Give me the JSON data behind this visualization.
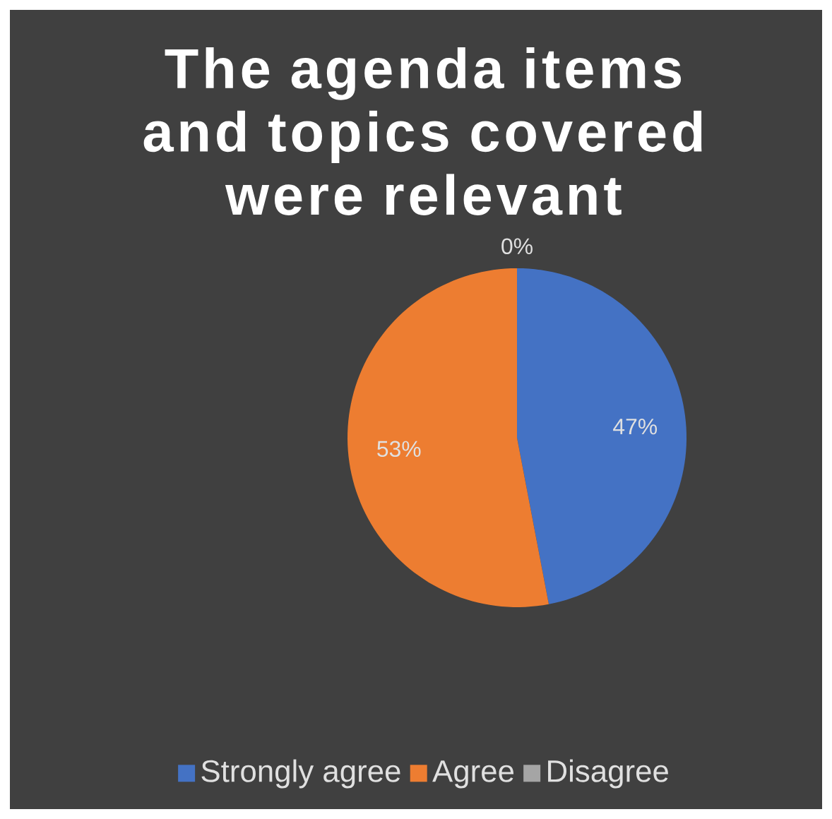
{
  "chart_data": {
    "type": "pie",
    "title": "The agenda items and topics covered were relevant",
    "categories": [
      "Strongly agree",
      "Agree",
      "Disagree"
    ],
    "values": [
      47,
      53,
      0
    ],
    "colors": [
      "#4472c4",
      "#ed7d31",
      "#a5a5a5"
    ],
    "value_labels": [
      "47%",
      "53%",
      "0%"
    ],
    "legend": "bottom"
  }
}
